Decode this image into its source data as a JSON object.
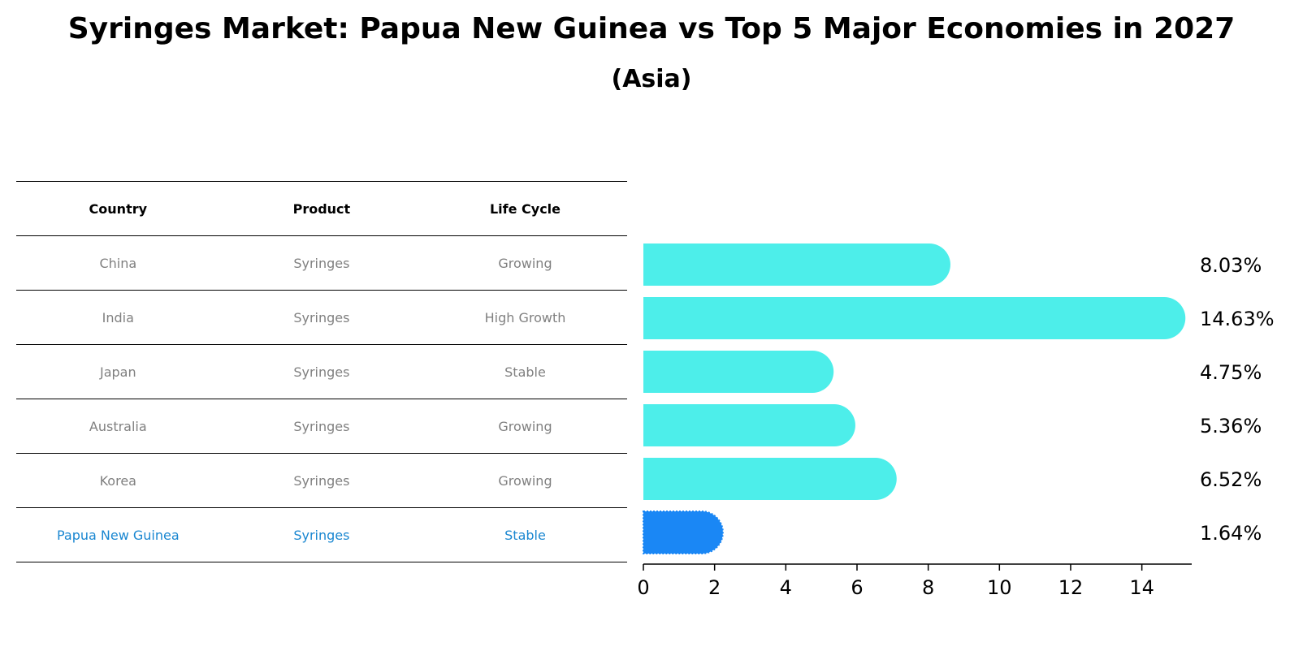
{
  "title": "Syringes Market: Papua New Guinea vs Top 5 Major Economies in 2027",
  "subtitle": "(Asia)",
  "table": {
    "headers": [
      "Country",
      "Product",
      "Life Cycle"
    ],
    "rows": [
      [
        "China",
        "Syringes",
        "Growing"
      ],
      [
        "India",
        "Syringes",
        "High Growth"
      ],
      [
        "Japan",
        "Syringes",
        "Stable"
      ],
      [
        "Australia",
        "Syringes",
        "Growing"
      ],
      [
        "Korea",
        "Syringes",
        "Growing"
      ],
      [
        "Papua New Guinea",
        "Syringes",
        "Stable"
      ]
    ]
  },
  "chart_data": {
    "type": "bar",
    "orientation": "horizontal",
    "categories": [
      "China",
      "India",
      "Japan",
      "Australia",
      "Korea",
      "Papua New Guinea"
    ],
    "values": [
      8.03,
      14.63,
      4.75,
      5.36,
      6.52,
      1.64
    ],
    "labels": [
      "8.03%",
      "14.63%",
      "4.75%",
      "5.36%",
      "6.52%",
      "1.64%"
    ],
    "xlim": [
      0,
      15.4
    ],
    "xticks": [
      0,
      2,
      4,
      6,
      8,
      10,
      12,
      14
    ],
    "grid": false,
    "colors": {
      "default": "#4deeea",
      "highlight": "#1a87f5"
    },
    "highlight_index": 5
  }
}
